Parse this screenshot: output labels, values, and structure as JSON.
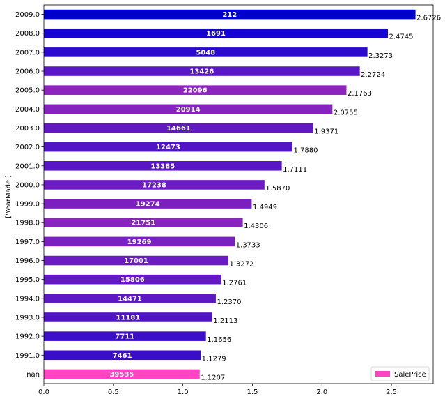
{
  "chart_data": {
    "type": "bar",
    "orientation": "horizontal",
    "title": "",
    "xlabel": "",
    "ylabel": "['YearMade']",
    "xlim": [
      0.0,
      2.8
    ],
    "xticks": [
      0.0,
      0.5,
      1.0,
      1.5,
      2.0,
      2.5
    ],
    "xtick_labels": [
      "0.0",
      "0.5",
      "1.0",
      "1.5",
      "2.0",
      "2.5"
    ],
    "grid": false,
    "legend": {
      "placement": "lower-right",
      "entries": [
        {
          "name": "SalePrice",
          "color": "#ff44c4"
        }
      ]
    },
    "categories": [
      "nan",
      "1991.0",
      "1992.0",
      "1993.0",
      "1994.0",
      "1995.0",
      "1996.0",
      "1997.0",
      "1998.0",
      "1999.0",
      "2000.0",
      "2001.0",
      "2002.0",
      "2003.0",
      "2004.0",
      "2005.0",
      "2006.0",
      "2007.0",
      "2008.0",
      "2009.0"
    ],
    "values": [
      1.1207,
      1.1279,
      1.1656,
      1.2113,
      1.237,
      1.2761,
      1.3272,
      1.3733,
      1.4306,
      1.4949,
      1.587,
      1.7111,
      1.788,
      1.9371,
      2.0755,
      2.1763,
      2.2724,
      2.3273,
      2.4745,
      2.6726
    ],
    "value_labels": [
      "1.1207",
      "1.1279",
      "1.1656",
      "1.2113",
      "1.2370",
      "1.2761",
      "1.3272",
      "1.3733",
      "1.4306",
      "1.4949",
      "1.5870",
      "1.7111",
      "1.7880",
      "1.9371",
      "2.0755",
      "2.1763",
      "2.2724",
      "2.3273",
      "2.4745",
      "2.6726"
    ],
    "counts": [
      "39535",
      "7461",
      "7711",
      "11181",
      "14471",
      "15806",
      "17001",
      "19269",
      "21751",
      "19274",
      "17238",
      "13385",
      "12473",
      "14661",
      "20914",
      "22096",
      "13426",
      "5048",
      "1691",
      "212"
    ],
    "colors": [
      "#ff44c4",
      "#3a0dc9",
      "#3e0fc9",
      "#4f14c6",
      "#5d18c4",
      "#6419c3",
      "#6a1bc2",
      "#7a1fc0",
      "#8924bd",
      "#7b20bf",
      "#6c1cc2",
      "#5816c5",
      "#5215c5",
      "#5e19c4",
      "#8423be",
      "#8c24bd",
      "#5917c5",
      "#2b0ace",
      "#1504d2",
      "#0000cc"
    ]
  }
}
